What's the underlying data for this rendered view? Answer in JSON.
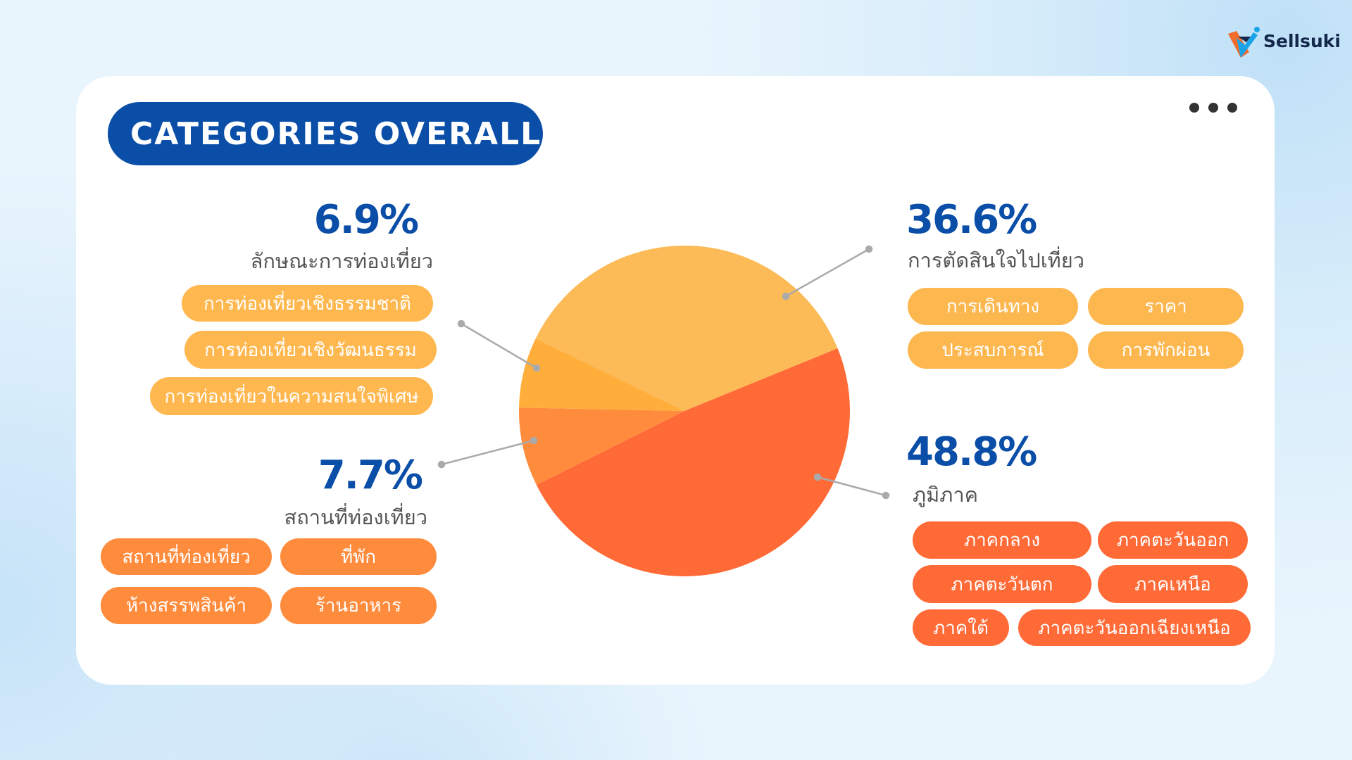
{
  "brand": {
    "name": "Sellsuki"
  },
  "title": "CATEGORIES OVERALL",
  "menu_icon": "more-horizontal-icon",
  "colors": {
    "title_bg": "#0a4ea8",
    "percent_text": "#0a4ea8",
    "decision": "#fdbb57",
    "region": "#ff6a37",
    "places": "#ff8b3d",
    "travel_type": "#ffae3b"
  },
  "chart_data": {
    "type": "pie",
    "slices": [
      {
        "name": "การตัดสินใจไปเที่ยว",
        "value": 36.6,
        "color": "#fdbb57"
      },
      {
        "name": "ภูมิภาค",
        "value": 48.8,
        "color": "#ff6a37"
      },
      {
        "name": "สถานที่ท่องเที่ยว",
        "value": 7.7,
        "color": "#ff8b3d"
      },
      {
        "name": "ลักษณะการท่องเที่ยว",
        "value": 6.9,
        "color": "#ffae3b"
      }
    ]
  },
  "groups": {
    "travel_type": {
      "percent": "6.9%",
      "label": "ลักษณะการท่องเที่ยว",
      "tags": [
        "การท่องเที่ยวเชิงธรรมชาติ",
        "การท่องเที่ยวเชิงวัฒนธรรม",
        "การท่องเที่ยวในความสนใจพิเศษ"
      ]
    },
    "places": {
      "percent": "7.7%",
      "label": "สถานที่ท่องเที่ยว",
      "tags": [
        "สถานที่ท่องเที่ยว",
        "ที่พัก",
        "ห้างสรรพสินค้า",
        "ร้านอาหาร"
      ]
    },
    "decision": {
      "percent": "36.6%",
      "label": "การตัดสินใจไปเที่ยว",
      "tags": [
        "การเดินทาง",
        "ราคา",
        "ประสบการณ์",
        "การพักผ่อน"
      ]
    },
    "region": {
      "percent": "48.8%",
      "label": "ภูมิภาค",
      "tags": [
        "ภาคกลาง",
        "ภาคตะวันออก",
        "ภาคตะวันตก",
        "ภาคเหนือ",
        "ภาคใต้",
        "ภาคตะวันออกเฉียงเหนือ"
      ]
    }
  }
}
